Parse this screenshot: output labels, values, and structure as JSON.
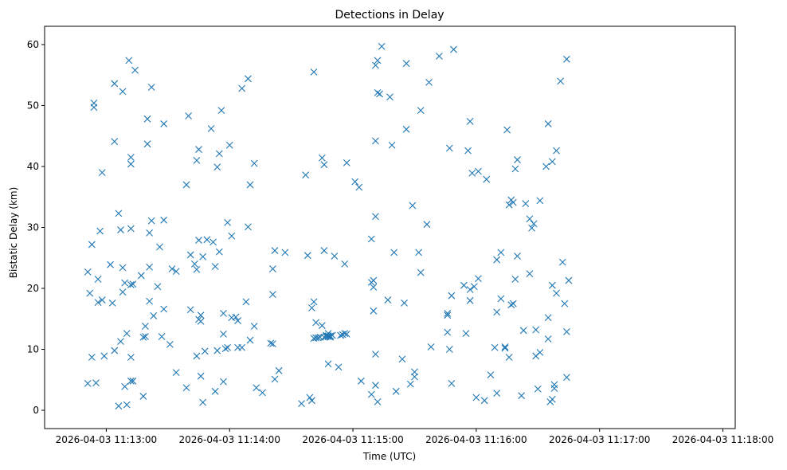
{
  "chart_data": {
    "type": "scatter",
    "title": "Detections in Delay",
    "xlabel": "Time (UTC)",
    "ylabel": "Bistatic Delay (km)",
    "marker": "x",
    "color": "#1f77b4",
    "grid": false,
    "xlim": [
      "2026-04-03 11:12:30",
      "2026-04-03 11:18:06"
    ],
    "ylim": [
      -3,
      63
    ],
    "x_ticks": [
      "2026-04-03 11:13:00",
      "2026-04-03 11:14:00",
      "2026-04-03 11:15:00",
      "2026-04-03 11:16:00",
      "2026-04-03 11:17:00",
      "2026-04-03 11:18:00"
    ],
    "y_ticks": [
      0,
      10,
      20,
      30,
      40,
      50,
      60
    ],
    "points": [
      [
        "2026-04-03 11:12:51",
        22.7
      ],
      [
        "2026-04-03 11:12:51",
        4.4
      ],
      [
        "2026-04-03 11:12:52",
        19.2
      ],
      [
        "2026-04-03 11:12:53",
        8.7
      ],
      [
        "2026-04-03 11:12:53",
        27.2
      ],
      [
        "2026-04-03 11:12:54",
        50.4
      ],
      [
        "2026-04-03 11:12:54",
        49.7
      ],
      [
        "2026-04-03 11:12:55",
        4.5
      ],
      [
        "2026-04-03 11:12:56",
        21.5
      ],
      [
        "2026-04-03 11:12:56",
        17.7
      ],
      [
        "2026-04-03 11:12:57",
        29.4
      ],
      [
        "2026-04-03 11:12:58",
        39.0
      ],
      [
        "2026-04-03 11:12:58",
        18.1
      ],
      [
        "2026-04-03 11:12:59",
        8.9
      ],
      [
        "2026-04-03 11:13:02",
        23.9
      ],
      [
        "2026-04-03 11:13:03",
        17.6
      ],
      [
        "2026-04-03 11:13:04",
        53.6
      ],
      [
        "2026-04-03 11:13:04",
        44.1
      ],
      [
        "2026-04-03 11:13:04",
        9.8
      ],
      [
        "2026-04-03 11:13:06",
        32.3
      ],
      [
        "2026-04-03 11:13:07",
        29.6
      ],
      [
        "2026-04-03 11:13:07",
        11.3
      ],
      [
        "2026-04-03 11:13:08",
        52.3
      ],
      [
        "2026-04-03 11:13:08",
        19.4
      ],
      [
        "2026-04-03 11:13:08",
        23.4
      ],
      [
        "2026-04-03 11:13:09",
        20.9
      ],
      [
        "2026-04-03 11:13:09",
        3.9
      ],
      [
        "2026-04-03 11:13:10",
        12.6
      ],
      [
        "2026-04-03 11:13:10",
        0.9
      ],
      [
        "2026-04-03 11:13:11",
        57.4
      ],
      [
        "2026-04-03 11:13:12",
        41.5
      ],
      [
        "2026-04-03 11:13:12",
        40.4
      ],
      [
        "2026-04-03 11:13:12",
        29.8
      ],
      [
        "2026-04-03 11:13:12",
        20.6
      ],
      [
        "2026-04-03 11:13:12",
        8.7
      ],
      [
        "2026-04-03 11:13:12",
        4.8
      ],
      [
        "2026-04-03 11:13:13",
        20.7
      ],
      [
        "2026-04-03 11:13:13",
        4.8
      ],
      [
        "2026-04-03 11:13:14",
        55.8
      ],
      [
        "2026-04-03 11:13:06",
        0.7
      ],
      [
        "2026-04-03 11:13:17",
        22.1
      ],
      [
        "2026-04-03 11:13:18",
        12.0
      ],
      [
        "2026-04-03 11:13:18",
        2.3
      ],
      [
        "2026-04-03 11:13:19",
        13.8
      ],
      [
        "2026-04-03 11:13:19",
        12.1
      ],
      [
        "2026-04-03 11:13:20",
        47.8
      ],
      [
        "2026-04-03 11:13:20",
        43.7
      ],
      [
        "2026-04-03 11:13:21",
        29.1
      ],
      [
        "2026-04-03 11:13:21",
        23.5
      ],
      [
        "2026-04-03 11:13:21",
        17.9
      ],
      [
        "2026-04-03 11:13:22",
        53.0
      ],
      [
        "2026-04-03 11:13:22",
        31.1
      ],
      [
        "2026-04-03 11:13:23",
        15.5
      ],
      [
        "2026-04-03 11:13:25",
        20.3
      ],
      [
        "2026-04-03 11:13:26",
        26.8
      ],
      [
        "2026-04-03 11:13:27",
        12.1
      ],
      [
        "2026-04-03 11:13:28",
        47.0
      ],
      [
        "2026-04-03 11:13:28",
        31.2
      ],
      [
        "2026-04-03 11:13:28",
        16.6
      ],
      [
        "2026-04-03 11:13:31",
        10.8
      ],
      [
        "2026-04-03 11:13:32",
        23.2
      ],
      [
        "2026-04-03 11:13:34",
        6.2
      ],
      [
        "2026-04-03 11:13:34",
        22.8
      ],
      [
        "2026-04-03 11:13:39",
        37.0
      ],
      [
        "2026-04-03 11:13:39",
        3.7
      ],
      [
        "2026-04-03 11:13:40",
        48.3
      ],
      [
        "2026-04-03 11:13:41",
        25.5
      ],
      [
        "2026-04-03 11:13:41",
        16.5
      ],
      [
        "2026-04-03 11:13:43",
        24.0
      ],
      [
        "2026-04-03 11:13:44",
        41.0
      ],
      [
        "2026-04-03 11:13:44",
        23.1
      ],
      [
        "2026-04-03 11:13:44",
        8.9
      ],
      [
        "2026-04-03 11:13:45",
        42.8
      ],
      [
        "2026-04-03 11:13:45",
        27.9
      ],
      [
        "2026-04-03 11:13:45",
        14.9
      ],
      [
        "2026-04-03 11:13:46",
        14.6
      ],
      [
        "2026-04-03 11:13:46",
        15.6
      ],
      [
        "2026-04-03 11:13:46",
        5.6
      ],
      [
        "2026-04-03 11:13:47",
        25.2
      ],
      [
        "2026-04-03 11:13:47",
        1.3
      ],
      [
        "2026-04-03 11:13:48",
        9.7
      ],
      [
        "2026-04-03 11:13:49",
        28.0
      ],
      [
        "2026-04-03 11:13:51",
        46.2
      ],
      [
        "2026-04-03 11:13:52",
        27.6
      ],
      [
        "2026-04-03 11:13:53",
        23.6
      ],
      [
        "2026-04-03 11:13:53",
        3.1
      ],
      [
        "2026-04-03 11:13:54",
        9.8
      ],
      [
        "2026-04-03 11:13:54",
        39.9
      ],
      [
        "2026-04-03 11:13:55",
        42.1
      ],
      [
        "2026-04-03 11:13:55",
        26.0
      ],
      [
        "2026-04-03 11:13:56",
        49.2
      ],
      [
        "2026-04-03 11:13:57",
        15.9
      ],
      [
        "2026-04-03 11:13:57",
        12.5
      ],
      [
        "2026-04-03 11:13:57",
        4.7
      ],
      [
        "2026-04-03 11:13:58",
        10.1
      ],
      [
        "2026-04-03 11:13:59",
        30.8
      ],
      [
        "2026-04-03 11:13:59",
        10.3
      ],
      [
        "2026-04-03 11:14:00",
        43.5
      ],
      [
        "2026-04-03 11:14:01",
        28.6
      ],
      [
        "2026-04-03 11:14:01",
        15.2
      ],
      [
        "2026-04-03 11:14:03",
        15.3
      ],
      [
        "2026-04-03 11:14:04",
        14.7
      ],
      [
        "2026-04-03 11:14:04",
        10.3
      ],
      [
        "2026-04-03 11:14:06",
        10.3
      ],
      [
        "2026-04-03 11:14:06",
        52.8
      ],
      [
        "2026-04-03 11:14:08",
        17.8
      ],
      [
        "2026-04-03 11:14:09",
        54.4
      ],
      [
        "2026-04-03 11:14:09",
        30.1
      ],
      [
        "2026-04-03 11:14:10",
        37.0
      ],
      [
        "2026-04-03 11:14:10",
        11.5
      ],
      [
        "2026-04-03 11:14:12",
        40.5
      ],
      [
        "2026-04-03 11:14:12",
        13.8
      ],
      [
        "2026-04-03 11:14:13",
        3.7
      ],
      [
        "2026-04-03 11:14:16",
        2.9
      ],
      [
        "2026-04-03 11:14:20",
        11.0
      ],
      [
        "2026-04-03 11:14:21",
        10.9
      ],
      [
        "2026-04-03 11:14:21",
        23.2
      ],
      [
        "2026-04-03 11:14:21",
        19.0
      ],
      [
        "2026-04-03 11:14:22",
        26.2
      ],
      [
        "2026-04-03 11:14:22",
        5.1
      ],
      [
        "2026-04-03 11:14:24",
        6.5
      ],
      [
        "2026-04-03 11:14:27",
        25.9
      ],
      [
        "2026-04-03 11:14:35",
        1.1
      ],
      [
        "2026-04-03 11:14:37",
        38.6
      ],
      [
        "2026-04-03 11:14:38",
        25.4
      ],
      [
        "2026-04-03 11:14:39",
        2.1
      ],
      [
        "2026-04-03 11:14:40",
        16.8
      ],
      [
        "2026-04-03 11:14:40",
        1.6
      ],
      [
        "2026-04-03 11:14:41",
        55.5
      ],
      [
        "2026-04-03 11:14:41",
        17.8
      ],
      [
        "2026-04-03 11:14:41",
        11.8
      ],
      [
        "2026-04-03 11:14:42",
        14.4
      ],
      [
        "2026-04-03 11:14:42",
        11.9
      ],
      [
        "2026-04-03 11:14:43",
        11.9
      ],
      [
        "2026-04-03 11:14:44",
        12.0
      ],
      [
        "2026-04-03 11:14:45",
        41.4
      ],
      [
        "2026-04-03 11:14:45",
        13.9
      ],
      [
        "2026-04-03 11:14:46",
        40.3
      ],
      [
        "2026-04-03 11:14:46",
        26.2
      ],
      [
        "2026-04-03 11:14:46",
        12.0
      ],
      [
        "2026-04-03 11:14:47",
        12.3
      ],
      [
        "2026-04-03 11:14:47",
        12.1
      ],
      [
        "2026-04-03 11:14:48",
        12.6
      ],
      [
        "2026-04-03 11:14:48",
        12.1
      ],
      [
        "2026-04-03 11:14:48",
        12.2
      ],
      [
        "2026-04-03 11:14:48",
        7.6
      ],
      [
        "2026-04-03 11:14:49",
        12.2
      ],
      [
        "2026-04-03 11:14:49",
        12.0
      ],
      [
        "2026-04-03 11:14:50",
        12.3
      ],
      [
        "2026-04-03 11:14:51",
        25.3
      ],
      [
        "2026-04-03 11:14:53",
        7.1
      ],
      [
        "2026-04-03 11:14:54",
        12.3
      ],
      [
        "2026-04-03 11:14:55",
        12.4
      ],
      [
        "2026-04-03 11:14:56",
        24.0
      ],
      [
        "2026-04-03 11:14:56",
        12.6
      ],
      [
        "2026-04-03 11:14:57",
        40.6
      ],
      [
        "2026-04-03 11:14:57",
        12.5
      ],
      [
        "2026-04-03 11:15:01",
        37.5
      ],
      [
        "2026-04-03 11:15:03",
        36.6
      ],
      [
        "2026-04-03 11:15:04",
        4.8
      ],
      [
        "2026-04-03 11:15:09",
        28.1
      ],
      [
        "2026-04-03 11:15:09",
        21.0
      ],
      [
        "2026-04-03 11:15:10",
        21.3
      ],
      [
        "2026-04-03 11:15:10",
        20.2
      ],
      [
        "2026-04-03 11:15:10",
        16.3
      ],
      [
        "2026-04-03 11:15:09",
        2.6
      ],
      [
        "2026-04-03 11:15:11",
        56.6
      ],
      [
        "2026-04-03 11:15:11",
        44.2
      ],
      [
        "2026-04-03 11:15:11",
        31.8
      ],
      [
        "2026-04-03 11:15:11",
        9.2
      ],
      [
        "2026-04-03 11:15:11",
        4.1
      ],
      [
        "2026-04-03 11:15:12",
        57.4
      ],
      [
        "2026-04-03 11:15:12",
        52.1
      ],
      [
        "2026-04-03 11:15:13",
        51.9
      ],
      [
        "2026-04-03 11:15:12",
        1.4
      ],
      [
        "2026-04-03 11:15:14",
        59.7
      ],
      [
        "2026-04-03 11:15:17",
        18.1
      ],
      [
        "2026-04-03 11:15:18",
        51.4
      ],
      [
        "2026-04-03 11:15:19",
        43.5
      ],
      [
        "2026-04-03 11:15:20",
        25.9
      ],
      [
        "2026-04-03 11:15:21",
        3.1
      ],
      [
        "2026-04-03 11:15:24",
        8.4
      ],
      [
        "2026-04-03 11:15:25",
        17.6
      ],
      [
        "2026-04-03 11:15:26",
        56.9
      ],
      [
        "2026-04-03 11:15:26",
        46.1
      ],
      [
        "2026-04-03 11:15:28",
        4.3
      ],
      [
        "2026-04-03 11:15:29",
        33.6
      ],
      [
        "2026-04-03 11:15:30",
        6.3
      ],
      [
        "2026-04-03 11:15:30",
        5.5
      ],
      [
        "2026-04-03 11:15:32",
        25.9
      ],
      [
        "2026-04-03 11:15:33",
        49.2
      ],
      [
        "2026-04-03 11:15:33",
        22.6
      ],
      [
        "2026-04-03 11:15:36",
        30.5
      ],
      [
        "2026-04-03 11:15:37",
        53.8
      ],
      [
        "2026-04-03 11:15:38",
        10.4
      ],
      [
        "2026-04-03 11:15:42",
        58.1
      ],
      [
        "2026-04-03 11:15:46",
        12.8
      ],
      [
        "2026-04-03 11:15:46",
        15.9
      ],
      [
        "2026-04-03 11:15:46",
        15.6
      ],
      [
        "2026-04-03 11:15:47",
        43.0
      ],
      [
        "2026-04-03 11:15:47",
        10.0
      ],
      [
        "2026-04-03 11:15:48",
        18.8
      ],
      [
        "2026-04-03 11:15:48",
        4.4
      ],
      [
        "2026-04-03 11:15:49",
        59.2
      ],
      [
        "2026-04-03 11:15:54",
        20.5
      ],
      [
        "2026-04-03 11:15:55",
        12.6
      ],
      [
        "2026-04-03 11:15:56",
        42.6
      ],
      [
        "2026-04-03 11:15:57",
        47.4
      ],
      [
        "2026-04-03 11:15:57",
        19.8
      ],
      [
        "2026-04-03 11:15:57",
        18.0
      ],
      [
        "2026-04-03 11:15:58",
        38.9
      ],
      [
        "2026-04-03 11:15:59",
        20.3
      ],
      [
        "2026-04-03 11:16:00",
        2.1
      ],
      [
        "2026-04-03 11:16:01",
        39.2
      ],
      [
        "2026-04-03 11:16:01",
        21.6
      ],
      [
        "2026-04-03 11:16:04",
        1.6
      ],
      [
        "2026-04-03 11:16:05",
        37.9
      ],
      [
        "2026-04-03 11:16:07",
        5.8
      ],
      [
        "2026-04-03 11:16:09",
        10.3
      ],
      [
        "2026-04-03 11:16:10",
        24.7
      ],
      [
        "2026-04-03 11:16:10",
        16.1
      ],
      [
        "2026-04-03 11:16:10",
        2.8
      ],
      [
        "2026-04-03 11:16:12",
        25.9
      ],
      [
        "2026-04-03 11:16:12",
        18.3
      ],
      [
        "2026-04-03 11:16:14",
        10.2
      ],
      [
        "2026-04-03 11:16:14",
        10.4
      ],
      [
        "2026-04-03 11:16:15",
        46.0
      ],
      [
        "2026-04-03 11:16:16",
        33.7
      ],
      [
        "2026-04-03 11:16:16",
        8.7
      ],
      [
        "2026-04-03 11:16:17",
        34.5
      ],
      [
        "2026-04-03 11:16:17",
        17.3
      ],
      [
        "2026-04-03 11:16:18",
        17.5
      ],
      [
        "2026-04-03 11:16:18",
        34.1
      ],
      [
        "2026-04-03 11:16:19",
        21.5
      ],
      [
        "2026-04-03 11:16:19",
        39.6
      ],
      [
        "2026-04-03 11:16:20",
        41.1
      ],
      [
        "2026-04-03 11:16:20",
        25.3
      ],
      [
        "2026-04-03 11:16:22",
        2.4
      ],
      [
        "2026-04-03 11:16:23",
        13.1
      ],
      [
        "2026-04-03 11:16:24",
        33.9
      ],
      [
        "2026-04-03 11:16:26",
        22.4
      ],
      [
        "2026-04-03 11:16:26",
        31.4
      ],
      [
        "2026-04-03 11:16:27",
        29.9
      ],
      [
        "2026-04-03 11:16:28",
        30.6
      ],
      [
        "2026-04-03 11:16:29",
        13.2
      ],
      [
        "2026-04-03 11:16:29",
        8.9
      ],
      [
        "2026-04-03 11:16:30",
        3.5
      ],
      [
        "2026-04-03 11:16:31",
        9.5
      ],
      [
        "2026-04-03 11:16:31",
        34.4
      ],
      [
        "2026-04-03 11:16:34",
        40.0
      ],
      [
        "2026-04-03 11:16:35",
        47.0
      ],
      [
        "2026-04-03 11:16:35",
        15.2
      ],
      [
        "2026-04-03 11:16:35",
        11.7
      ],
      [
        "2026-04-03 11:16:36",
        1.4
      ],
      [
        "2026-04-03 11:16:37",
        40.8
      ],
      [
        "2026-04-03 11:16:37",
        20.5
      ],
      [
        "2026-04-03 11:16:37",
        1.8
      ],
      [
        "2026-04-03 11:16:38",
        3.6
      ],
      [
        "2026-04-03 11:16:38",
        4.2
      ],
      [
        "2026-04-03 11:16:39",
        42.6
      ],
      [
        "2026-04-03 11:16:39",
        19.2
      ],
      [
        "2026-04-03 11:16:41",
        54.0
      ],
      [
        "2026-04-03 11:16:42",
        24.3
      ],
      [
        "2026-04-03 11:16:43",
        17.5
      ],
      [
        "2026-04-03 11:16:44",
        5.4
      ],
      [
        "2026-04-03 11:16:44",
        57.6
      ],
      [
        "2026-04-03 11:16:45",
        21.3
      ],
      [
        "2026-04-03 11:16:44",
        12.9
      ]
    ]
  }
}
